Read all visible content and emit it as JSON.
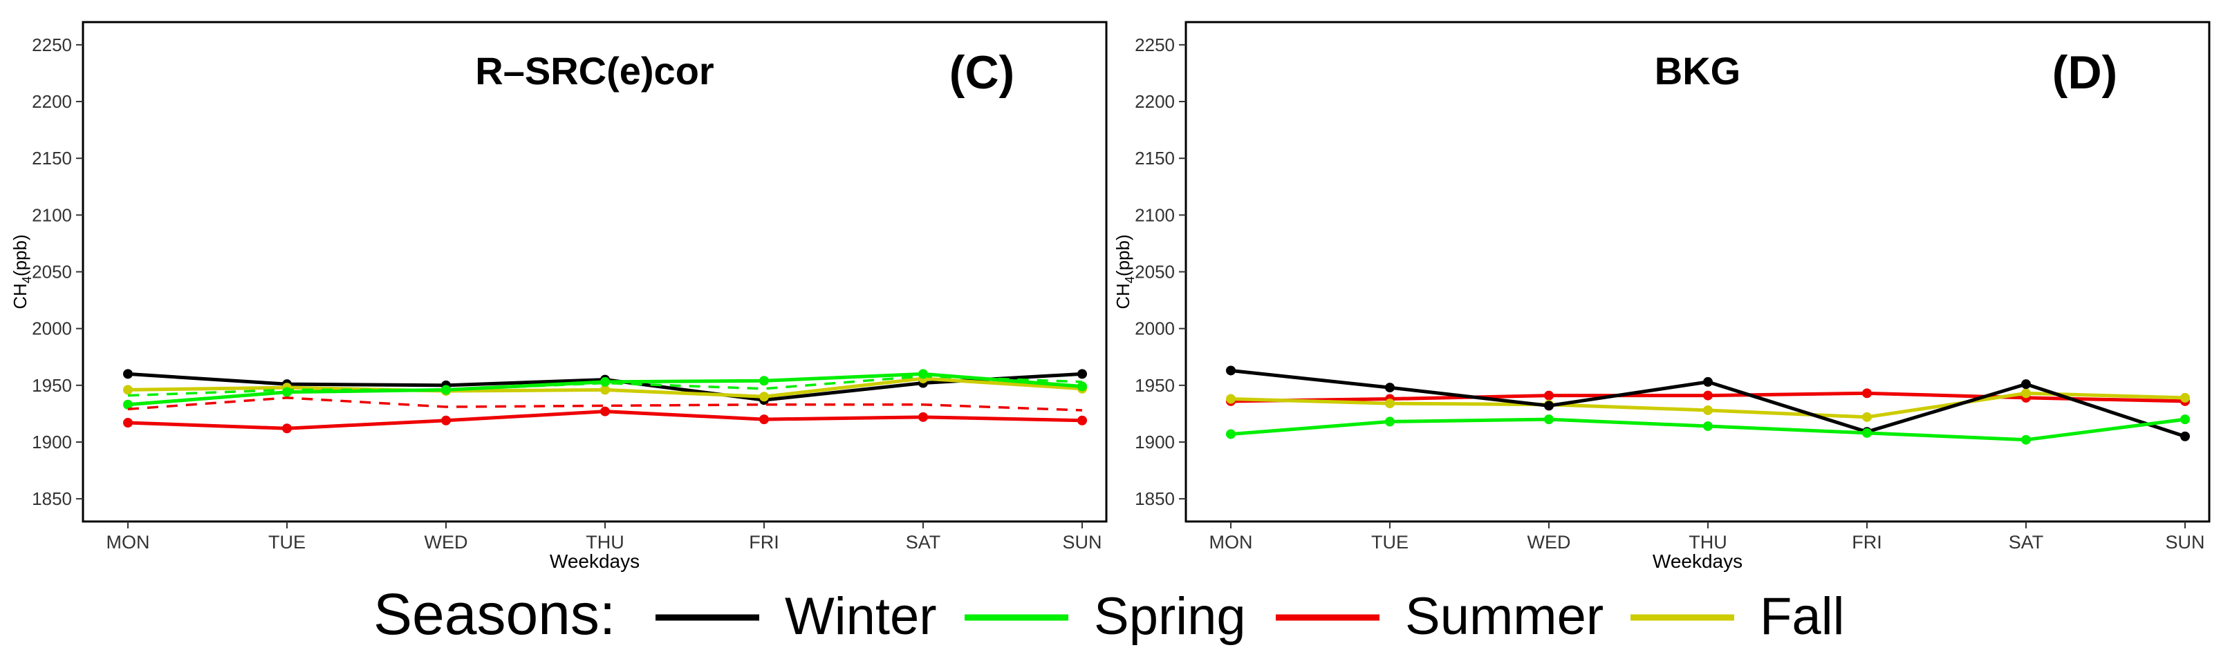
{
  "chart_data": [
    {
      "id": "C",
      "type": "line",
      "title": "R–SRC(e)cor",
      "panel_label": "(C)",
      "xlabel": "Weekdays",
      "ylabel_main": "CH",
      "ylabel_sub": "4",
      "ylabel_unit": "(ppb)",
      "categories": [
        "MON",
        "TUE",
        "WED",
        "THU",
        "FRI",
        "SAT",
        "SUN"
      ],
      "ylim": [
        1830,
        2270
      ],
      "yticks": [
        1850,
        1900,
        1950,
        2000,
        2050,
        2100,
        2150,
        2200,
        2250
      ],
      "grid": false,
      "series": [
        {
          "name": "Winter",
          "color": "#000000",
          "dashed": false,
          "markers": true,
          "values": [
            1960,
            1951,
            1950,
            1955,
            1937,
            1952,
            1960
          ]
        },
        {
          "name": "Fall",
          "color": "#cccc00",
          "dashed": false,
          "markers": true,
          "values": [
            1946,
            1948,
            1945,
            1946,
            1940,
            1956,
            1947
          ]
        },
        {
          "name": "Spring",
          "color": "#00ee00",
          "dashed": false,
          "markers": true,
          "values": [
            1933,
            1944,
            1946,
            1953,
            1954,
            1960,
            1949
          ]
        },
        {
          "name": "Summer",
          "color": "#ee0000",
          "dashed": false,
          "markers": true,
          "values": [
            1917,
            1912,
            1919,
            1927,
            1920,
            1922,
            1919
          ]
        },
        {
          "name": "Spring",
          "color": "#00ee00",
          "dashed": true,
          "markers": false,
          "values": [
            1941,
            1946,
            1946,
            1952,
            1947,
            1958,
            1953
          ]
        },
        {
          "name": "Summer",
          "color": "#ee0000",
          "dashed": true,
          "markers": false,
          "values": [
            1929,
            1939,
            1931,
            1932,
            1933,
            1933,
            1928
          ]
        }
      ]
    },
    {
      "id": "D",
      "type": "line",
      "title": "BKG",
      "panel_label": "(D)",
      "xlabel": "Weekdays",
      "ylabel_main": "CH",
      "ylabel_sub": "4",
      "ylabel_unit": "(ppb)",
      "categories": [
        "MON",
        "TUE",
        "WED",
        "THU",
        "FRI",
        "SAT",
        "SUN"
      ],
      "ylim": [
        1830,
        2270
      ],
      "yticks": [
        1850,
        1900,
        1950,
        2000,
        2050,
        2100,
        2150,
        2200,
        2250
      ],
      "grid": false,
      "series": [
        {
          "name": "Summer",
          "color": "#ee0000",
          "dashed": false,
          "markers": true,
          "values": [
            1936,
            1938,
            1941,
            1941,
            1943,
            1939,
            1936
          ]
        },
        {
          "name": "Fall",
          "color": "#cccc00",
          "dashed": false,
          "markers": true,
          "values": [
            1938,
            1934,
            1933,
            1928,
            1922,
            1943,
            1939
          ]
        },
        {
          "name": "Winter",
          "color": "#000000",
          "dashed": false,
          "markers": true,
          "values": [
            1963,
            1948,
            1932,
            1953,
            1909,
            1951,
            1905
          ]
        },
        {
          "name": "Spring",
          "color": "#00ee00",
          "dashed": false,
          "markers": true,
          "values": [
            1907,
            1918,
            1920,
            1914,
            1908,
            1902,
            1920
          ]
        }
      ]
    }
  ],
  "legend": {
    "title": "Seasons:",
    "placement": "bottom",
    "entries": [
      {
        "label": "Winter",
        "color": "#000000"
      },
      {
        "label": "Spring",
        "color": "#00ee00"
      },
      {
        "label": "Summer",
        "color": "#ee0000"
      },
      {
        "label": "Fall",
        "color": "#cccc00"
      }
    ]
  }
}
